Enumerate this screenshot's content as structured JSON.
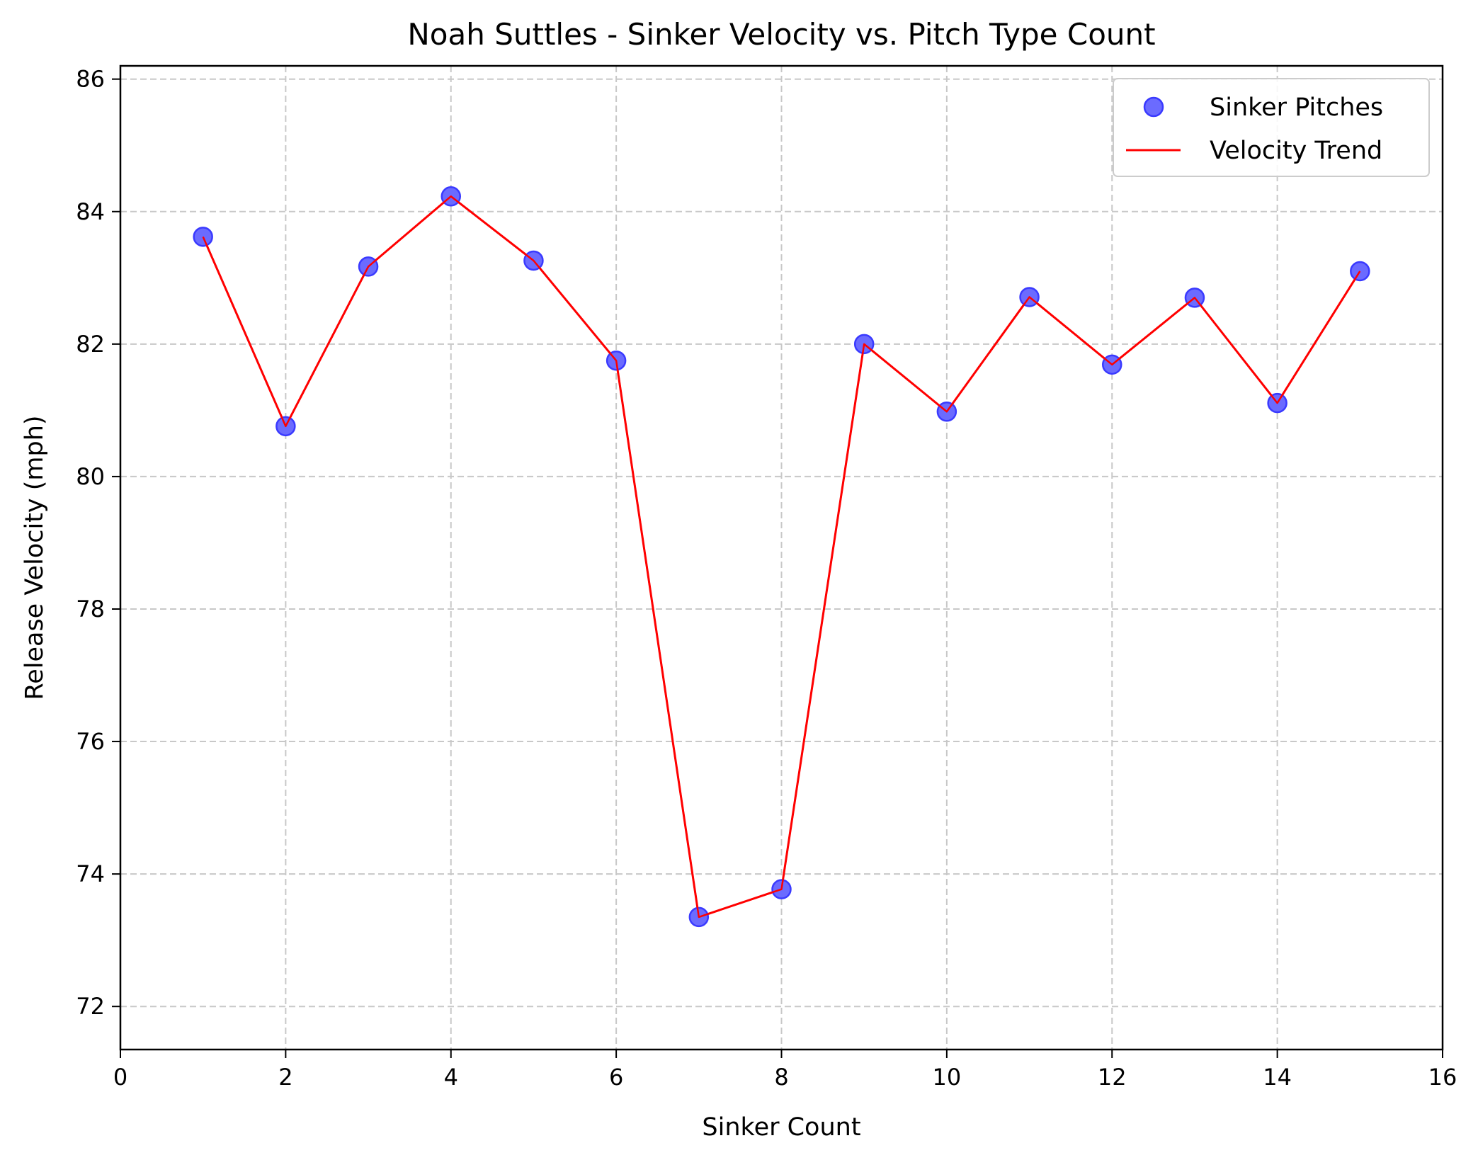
{
  "chart_data": {
    "type": "line",
    "title": "Noah Suttles - Sinker Velocity vs. Pitch Type Count",
    "xlabel": "Sinker Count",
    "ylabel": "Release Velocity (mph)",
    "xlim": [
      0,
      16
    ],
    "ylim": [
      71.35,
      86.2
    ],
    "xticks": [
      0,
      2,
      4,
      6,
      8,
      10,
      12,
      14,
      16
    ],
    "yticks": [
      72,
      74,
      76,
      78,
      80,
      82,
      84,
      86
    ],
    "grid": true,
    "legend_position": "top-right",
    "colors": {
      "scatter_fill": "#6b6bff",
      "scatter_edge": "#3a3aff",
      "line": "#ff0000",
      "grid": "#c8c8c8",
      "axes": "#000000"
    },
    "series": [
      {
        "name": "Sinker Pitches",
        "kind": "scatter",
        "x": [
          1,
          2,
          3,
          4,
          5,
          6,
          7,
          8,
          9,
          10,
          11,
          12,
          13,
          14,
          15
        ],
        "y": [
          83.62,
          80.76,
          83.17,
          84.23,
          83.26,
          81.75,
          73.35,
          73.77,
          82.0,
          80.98,
          82.71,
          81.69,
          82.7,
          81.11,
          83.1
        ]
      },
      {
        "name": "Velocity Trend",
        "kind": "line",
        "x": [
          1,
          2,
          3,
          4,
          5,
          6,
          7,
          8,
          9,
          10,
          11,
          12,
          13,
          14,
          15
        ],
        "y": [
          83.62,
          80.76,
          83.17,
          84.23,
          83.26,
          81.75,
          73.35,
          73.77,
          82.0,
          80.98,
          82.71,
          81.69,
          82.7,
          81.11,
          83.1
        ]
      }
    ]
  }
}
